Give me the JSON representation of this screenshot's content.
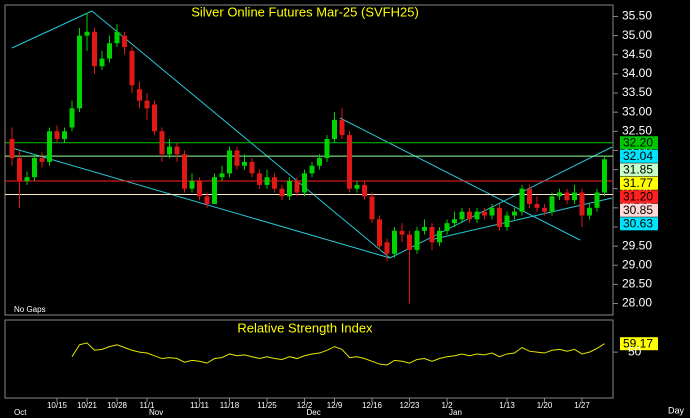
{
  "chart_data": [
    {
      "type": "candlestick",
      "title": "Silver Online Futures Mar-25 (SVFH25)",
      "annotation": "No Gaps",
      "period_label": "Day",
      "categories": [
        null,
        null,
        null,
        null,
        null,
        null,
        "10/15",
        null,
        null,
        null,
        "10/21",
        null,
        null,
        null,
        "10/28",
        null,
        null,
        null,
        "11/1",
        null,
        null,
        null,
        null,
        null,
        null,
        "11/11",
        null,
        null,
        null,
        "11/18",
        null,
        null,
        null,
        null,
        "11/25",
        null,
        null,
        null,
        null,
        "12/2",
        null,
        null,
        null,
        "12/9",
        null,
        null,
        null,
        null,
        "12/16",
        null,
        null,
        null,
        null,
        "12/23",
        null,
        null,
        null,
        null,
        "1/2",
        null,
        null,
        null,
        null,
        null,
        null,
        null,
        "1/13",
        null,
        null,
        null,
        null,
        "1/20",
        null,
        null,
        null,
        null,
        "1/27",
        null,
        null,
        null
      ],
      "month_categories": [
        "Oct",
        null,
        null,
        null,
        null,
        null,
        null,
        null,
        null,
        null,
        null,
        null,
        null,
        null,
        null,
        null,
        null,
        null,
        "Nov",
        null,
        null,
        null,
        null,
        null,
        null,
        null,
        null,
        null,
        null,
        null,
        null,
        null,
        null,
        null,
        null,
        null,
        null,
        null,
        null,
        "Dec",
        null,
        null,
        null,
        null,
        null,
        null,
        null,
        null,
        null,
        null,
        null,
        null,
        null,
        null,
        null,
        null,
        null,
        null,
        "Jan",
        null,
        null,
        null,
        null,
        null,
        null,
        null,
        null,
        null,
        null,
        null,
        null,
        null,
        null,
        null,
        null,
        null,
        null,
        null,
        null,
        null
      ],
      "open": [
        32.3,
        31.8,
        31.2,
        31.3,
        31.8,
        31.7,
        32.5,
        32.3,
        32.6,
        33.1,
        35.0,
        35.1,
        34.2,
        34.4,
        34.8,
        35.0,
        34.6,
        33.6,
        33.3,
        33.2,
        32.5,
        31.9,
        32.1,
        31.9,
        31.0,
        31.2,
        30.8,
        30.6,
        31.3,
        31.4,
        32.0,
        31.6,
        31.7,
        31.4,
        31.1,
        31.3,
        31.0,
        30.8,
        31.2,
        30.9,
        31.4,
        31.6,
        31.8,
        32.3,
        32.8,
        32.4,
        31.0,
        31.1,
        30.8,
        30.2,
        29.6,
        29.3,
        29.9,
        29.8,
        29.4,
        29.9,
        30.0,
        29.6,
        29.9,
        30.1,
        30.2,
        30.4,
        30.2,
        30.4,
        30.3,
        30.5,
        30.0,
        30.3,
        30.4,
        31.0,
        30.6,
        30.5,
        30.4,
        30.8,
        30.9,
        30.7,
        30.9,
        30.3,
        30.5,
        30.9
      ],
      "high": [
        32.6,
        32.0,
        31.45,
        31.9,
        31.95,
        32.6,
        32.65,
        32.6,
        33.3,
        35.2,
        35.6,
        35.2,
        34.6,
        35.0,
        35.3,
        35.1,
        34.7,
        33.8,
        33.5,
        33.3,
        32.6,
        32.3,
        32.2,
        32.0,
        31.4,
        31.3,
        30.9,
        31.4,
        31.6,
        32.1,
        32.1,
        31.9,
        31.8,
        31.5,
        31.5,
        31.4,
        31.1,
        31.3,
        31.3,
        31.5,
        31.7,
        31.9,
        32.4,
        33.0,
        33.1,
        32.5,
        31.2,
        31.2,
        30.9,
        30.3,
        29.7,
        30.0,
        30.1,
        29.9,
        30.0,
        30.2,
        30.1,
        30.0,
        30.2,
        30.4,
        30.5,
        30.5,
        30.5,
        30.5,
        30.6,
        30.6,
        30.4,
        30.5,
        31.1,
        31.1,
        30.8,
        30.6,
        30.9,
        31.0,
        31.0,
        31.1,
        31.0,
        30.6,
        31.0,
        31.85
      ],
      "low": [
        31.6,
        30.5,
        31.1,
        31.2,
        31.55,
        31.6,
        32.2,
        32.2,
        32.5,
        33.0,
        34.6,
        34.0,
        34.1,
        34.3,
        34.7,
        34.5,
        33.5,
        33.1,
        32.8,
        32.4,
        31.7,
        31.8,
        31.7,
        30.9,
        30.9,
        30.7,
        30.5,
        30.6,
        31.2,
        31.3,
        31.5,
        31.5,
        31.3,
        31.0,
        31.0,
        30.9,
        30.7,
        30.7,
        30.8,
        30.8,
        31.3,
        31.5,
        31.7,
        32.2,
        32.3,
        30.9,
        30.9,
        30.7,
        30.1,
        29.4,
        29.1,
        29.2,
        29.6,
        28.0,
        29.3,
        29.8,
        29.4,
        29.5,
        29.8,
        30.0,
        30.1,
        30.1,
        30.1,
        30.2,
        30.2,
        29.9,
        29.9,
        30.2,
        30.3,
        30.5,
        30.4,
        30.3,
        30.3,
        30.7,
        30.6,
        30.6,
        30.0,
        30.2,
        30.4,
        30.8
      ],
      "close": [
        31.8,
        31.2,
        31.3,
        31.8,
        31.7,
        32.5,
        32.3,
        32.5,
        33.1,
        35.0,
        35.1,
        34.2,
        34.4,
        34.8,
        35.1,
        34.7,
        33.7,
        33.3,
        33.1,
        32.5,
        31.9,
        32.1,
        31.9,
        31.0,
        31.2,
        30.8,
        30.6,
        31.3,
        31.4,
        32.0,
        31.6,
        31.7,
        31.4,
        31.1,
        31.3,
        31.0,
        30.8,
        31.2,
        30.9,
        31.4,
        31.6,
        31.8,
        32.3,
        32.8,
        32.4,
        31.0,
        31.1,
        30.8,
        30.2,
        29.5,
        29.3,
        29.9,
        29.8,
        29.4,
        29.9,
        30.0,
        29.6,
        29.9,
        30.1,
        30.2,
        30.4,
        30.2,
        30.4,
        30.3,
        30.5,
        30.0,
        30.3,
        30.4,
        31.0,
        30.6,
        30.5,
        30.4,
        30.8,
        30.9,
        30.7,
        30.9,
        30.3,
        30.5,
        30.9,
        31.77
      ],
      "up_color": "#00d400",
      "down_color": "#e01818",
      "ylim": [
        27.7,
        35.8
      ],
      "yticks": [
        {
          "value": 28,
          "label": "28.00"
        },
        {
          "value": 28.5,
          "label": "28.50"
        },
        {
          "value": 29,
          "label": "29.00"
        },
        {
          "value": 29.5,
          "label": "29.50"
        },
        {
          "value": 30,
          "label": "30.00"
        },
        {
          "value": 30.5,
          "label": "30.50"
        },
        {
          "value": 31,
          "label": "31.00"
        },
        {
          "value": 31.5,
          "label": "31.50"
        },
        {
          "value": 32,
          "label": "32.00"
        },
        {
          "value": 32.5,
          "label": "32.50"
        },
        {
          "value": 33,
          "label": "33.00"
        },
        {
          "value": 33.5,
          "label": "33.50"
        },
        {
          "value": 34,
          "label": "34.00"
        },
        {
          "value": 34.5,
          "label": "34.50"
        },
        {
          "value": 35,
          "label": "35.00"
        },
        {
          "value": 35.5,
          "label": "35.50"
        }
      ],
      "price_markers": [
        {
          "value": 32.2,
          "label": "32.20",
          "color": "#00c800",
          "line_color": "#00c800"
        },
        {
          "value": 32.04,
          "label": "32.04",
          "color": "#00e5ff",
          "line_color": null
        },
        {
          "value": 31.85,
          "label": "31.85",
          "color": "#c8ffc8",
          "line_color": "#90ff90"
        },
        {
          "value": 31.77,
          "label": "31.77",
          "color": "#ffff00",
          "line_color": null
        },
        {
          "value": 31.2,
          "label": "31.20",
          "color": "#ff2020",
          "line_color": "#ff2020"
        },
        {
          "value": 30.85,
          "label": "30.85",
          "color": "#ffd8d8",
          "line_color": "#ffe8c8"
        },
        {
          "value": 30.63,
          "label": "30.63",
          "color": "#00e5ff",
          "line_color": null
        }
      ]
    },
    {
      "type": "line",
      "title": "Relative Strength Index",
      "color": "#e6e600",
      "values": [
        null,
        null,
        null,
        null,
        null,
        null,
        null,
        null,
        45,
        58,
        60,
        52,
        53,
        56,
        58,
        55,
        52,
        50,
        49,
        46,
        43,
        44,
        43,
        39,
        41,
        40,
        38,
        43,
        44,
        48,
        46,
        47,
        45,
        43,
        45,
        43,
        42,
        45,
        43,
        46,
        48,
        49,
        52,
        56,
        53,
        44,
        45,
        43,
        40,
        37,
        36,
        41,
        40,
        38,
        42,
        43,
        40,
        43,
        45,
        46,
        48,
        46,
        48,
        47,
        49,
        45,
        48,
        49,
        55,
        51,
        50,
        49,
        52,
        53,
        51,
        53,
        48,
        50,
        54,
        59.17
      ],
      "value_labels": [
        null,
        null,
        null,
        null,
        null,
        null,
        null,
        null,
        null,
        null,
        null,
        null,
        null,
        null,
        null,
        null,
        null,
        null,
        null,
        null,
        null,
        null,
        null,
        null,
        null,
        null,
        null,
        null,
        null,
        null,
        null,
        null,
        null,
        null,
        null,
        null,
        null,
        null,
        null,
        null,
        null,
        null,
        null,
        null,
        null,
        null,
        null,
        null,
        null,
        null,
        null,
        null,
        null,
        null,
        null,
        null,
        null,
        null,
        null,
        null,
        null,
        null,
        null,
        null,
        null,
        null,
        null,
        null,
        null,
        null,
        null,
        null,
        null,
        null,
        null,
        null,
        null,
        null,
        null,
        "59.17"
      ],
      "ylim": [
        0,
        85
      ],
      "yticks": [
        50
      ]
    }
  ]
}
